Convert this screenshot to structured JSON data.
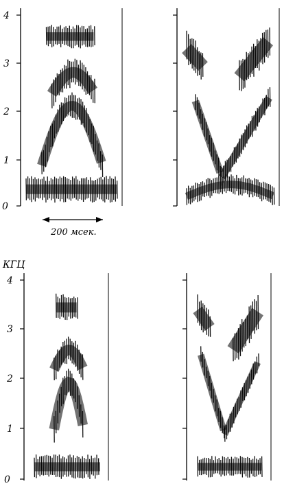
{
  "figure": {
    "y_unit_label": "КГЦ",
    "duration_label": "200 мсек.",
    "y_ticks": [
      "0",
      "1",
      "2",
      "3",
      "4"
    ],
    "panels": [
      {
        "id": "top-left",
        "formants": [
          {
            "type": "flat",
            "t0": 0.0,
            "t1": 1.0,
            "f": 0.35,
            "thick": 0.45
          },
          {
            "type": "arch",
            "t0": 0.17,
            "t1": 0.83,
            "fEdge": 0.85,
            "fPeak": 2.1,
            "thick": 0.45
          },
          {
            "type": "arch",
            "t0": 0.28,
            "t1": 0.75,
            "fEdge": 2.35,
            "fPeak": 2.8,
            "thick": 0.5
          },
          {
            "type": "flat",
            "t0": 0.22,
            "t1": 0.75,
            "f": 3.55,
            "thick": 0.4
          }
        ]
      },
      {
        "id": "top-right",
        "formants": [
          {
            "type": "arch",
            "t0": 0.0,
            "t1": 1.0,
            "fEdge": 0.2,
            "fPeak": 0.45,
            "thick": 0.35
          },
          {
            "type": "line",
            "t0": 0.1,
            "t1": 0.4,
            "f0": 2.2,
            "f1": 0.6,
            "thick": 0.35
          },
          {
            "type": "line",
            "t0": 0.4,
            "t1": 0.95,
            "f0": 0.6,
            "f1": 2.3,
            "thick": 0.35
          },
          {
            "type": "line",
            "t0": 0.0,
            "t1": 0.2,
            "f0": 3.3,
            "f1": 2.9,
            "thick": 0.6
          },
          {
            "type": "line",
            "t0": 0.6,
            "t1": 0.95,
            "f0": 2.7,
            "f1": 3.5,
            "thick": 0.6
          }
        ]
      },
      {
        "id": "bottom-left",
        "formants": [
          {
            "type": "flat",
            "t0": 0.0,
            "t1": 1.0,
            "f": 0.25,
            "thick": 0.4
          },
          {
            "type": "arch",
            "t0": 0.3,
            "t1": 0.75,
            "fEdge": 1.0,
            "fPeak": 1.95,
            "thick": 0.45
          },
          {
            "type": "arch",
            "t0": 0.3,
            "t1": 0.75,
            "fEdge": 2.2,
            "fPeak": 2.6,
            "thick": 0.45
          },
          {
            "type": "flat",
            "t0": 0.33,
            "t1": 0.66,
            "f": 3.45,
            "thick": 0.45
          }
        ]
      },
      {
        "id": "bottom-right",
        "formants": [
          {
            "type": "flat",
            "t0": 0.0,
            "t1": 1.0,
            "f": 0.25,
            "thick": 0.35
          },
          {
            "type": "line",
            "t0": 0.05,
            "t1": 0.42,
            "f0": 2.5,
            "f1": 0.9,
            "thick": 0.3
          },
          {
            "type": "line",
            "t0": 0.42,
            "t1": 0.95,
            "f0": 0.9,
            "f1": 2.4,
            "thick": 0.3
          },
          {
            "type": "line",
            "t0": 0.0,
            "t1": 0.22,
            "f0": 3.4,
            "f1": 3.0,
            "thick": 0.5
          },
          {
            "type": "line",
            "t0": 0.55,
            "t1": 0.95,
            "f0": 2.6,
            "f1": 3.4,
            "thick": 0.6
          }
        ]
      }
    ]
  }
}
